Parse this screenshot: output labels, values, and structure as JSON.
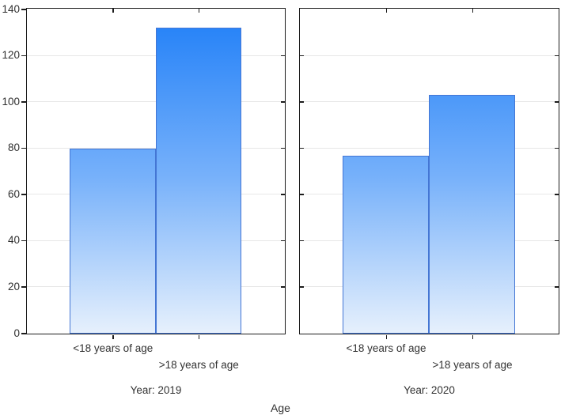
{
  "figure": {
    "xlabel": "Age",
    "background": "#ffffff"
  },
  "chart_data": {
    "type": "bar",
    "panels": [
      {
        "title": "Year: 2019",
        "categories": [
          "<18 years of age",
          ">18 years of age"
        ],
        "values": [
          80,
          132
        ]
      },
      {
        "title": "Year: 2020",
        "categories": [
          "<18 years of age",
          ">18 years of age"
        ],
        "values": [
          77,
          103
        ]
      }
    ],
    "ylim": [
      0,
      140
    ],
    "ytick_step": 20,
    "grid": true,
    "legend": "none",
    "y_labels_on_first_panel_only": true,
    "colors": {
      "bar_gradient_top": "#1e7ef8",
      "bar_gradient_bottom": "#e6f0fc",
      "bar_border": "#4476d4",
      "axis": "#1c1c1c",
      "gridline": "#e7e7e7",
      "text": "#2f2f2f"
    }
  }
}
